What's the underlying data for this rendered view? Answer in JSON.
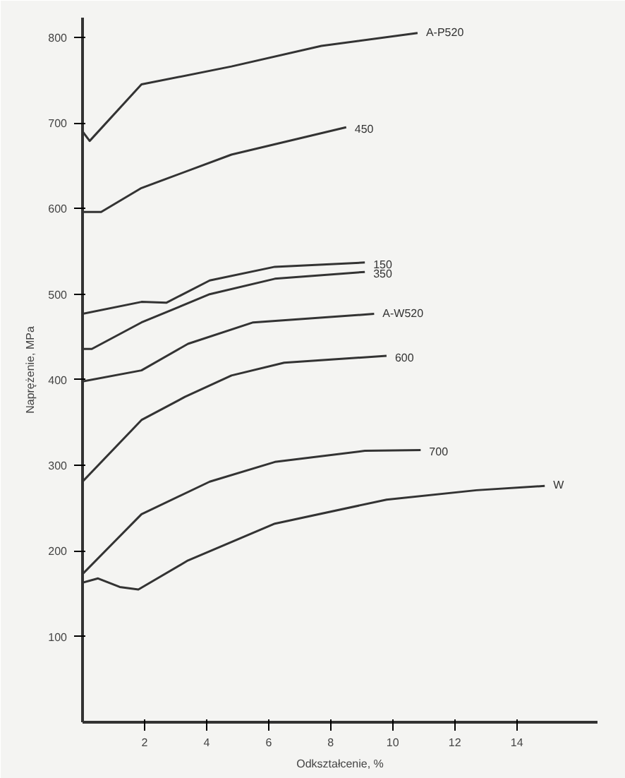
{
  "chart_data": {
    "type": "line",
    "xlabel": "Odkształcenie, %",
    "ylabel": "Naprężenie, MPa",
    "xlim": [
      0,
      16.6
    ],
    "ylim": [
      0,
      823
    ],
    "xticks": [
      2,
      4,
      6,
      8,
      10,
      12,
      14
    ],
    "yticks": [
      100,
      200,
      300,
      400,
      500,
      600,
      700,
      800
    ],
    "grid": false,
    "marker": "none",
    "line_style": "solid",
    "series": [
      {
        "name": "A-P520",
        "color": "#333333",
        "x": [
          0,
          0.23,
          1.9,
          4.8,
          7.7,
          10.8
        ],
        "values": [
          690,
          679,
          745,
          766,
          790,
          805
        ]
      },
      {
        "name": "450",
        "color": "#333333",
        "x": [
          0,
          0.6,
          1.9,
          4.8,
          8.5
        ],
        "values": [
          596,
          596,
          624,
          663,
          695
        ]
      },
      {
        "name": "150",
        "color": "#333333",
        "x": [
          0,
          1.9,
          2.7,
          4.1,
          6.2,
          9.1
        ],
        "values": [
          477,
          491,
          490,
          516,
          532,
          537
        ]
      },
      {
        "name": "350",
        "color": "#333333",
        "x": [
          0,
          0.3,
          1.9,
          4.1,
          6.2,
          9.1
        ],
        "values": [
          436,
          436,
          467,
          500,
          518,
          526
        ]
      },
      {
        "name": "A-W520",
        "color": "#333333",
        "x": [
          0,
          1.9,
          3.4,
          5.5,
          9.4
        ],
        "values": [
          398,
          411,
          442,
          467,
          477
        ]
      },
      {
        "name": "600",
        "color": "#333333",
        "x": [
          0,
          1.9,
          3.3,
          4.8,
          6.5,
          9.8
        ],
        "values": [
          281,
          353,
          380,
          405,
          420,
          428
        ]
      },
      {
        "name": "700",
        "color": "#333333",
        "x": [
          0,
          1.9,
          4.1,
          6.2,
          9.1,
          10.9
        ],
        "values": [
          173,
          243,
          281,
          304,
          317,
          318
        ]
      },
      {
        "name": "W",
        "color": "#333333",
        "x": [
          0,
          0.5,
          1.2,
          1.8,
          3.4,
          6.2,
          9.8,
          12.7,
          14.9
        ],
        "values": [
          163,
          168,
          158,
          155,
          189,
          232,
          260,
          271,
          276
        ]
      }
    ]
  }
}
